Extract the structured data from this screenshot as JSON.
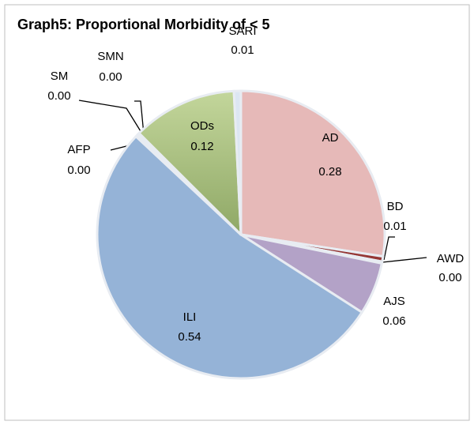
{
  "chart_data": {
    "type": "pie",
    "title": "Graph5: Proportional Morbidity of < 5",
    "categories": [
      "AD",
      "BD",
      "AWD",
      "AJS",
      "ILI",
      "AFP",
      "SM",
      "SMN",
      "ODs",
      "SARI"
    ],
    "values": [
      0.28,
      0.006,
      0.002,
      0.06,
      0.54,
      0.002,
      0.001,
      0.002,
      0.12,
      0.008
    ],
    "value_labels": [
      "0.28",
      "0.01",
      "0.00",
      "0.06",
      "0.54",
      "0.00",
      "0.00",
      "0.00",
      "0.12",
      "0.01"
    ],
    "colors": [
      "#e6b9b8",
      "#953735",
      "#4f6228",
      "#b3a2c7",
      "#95b3d7",
      "#c0504d",
      "#8064a2",
      "#4bacc6",
      "#c3d69b",
      "#dce6f2"
    ]
  }
}
